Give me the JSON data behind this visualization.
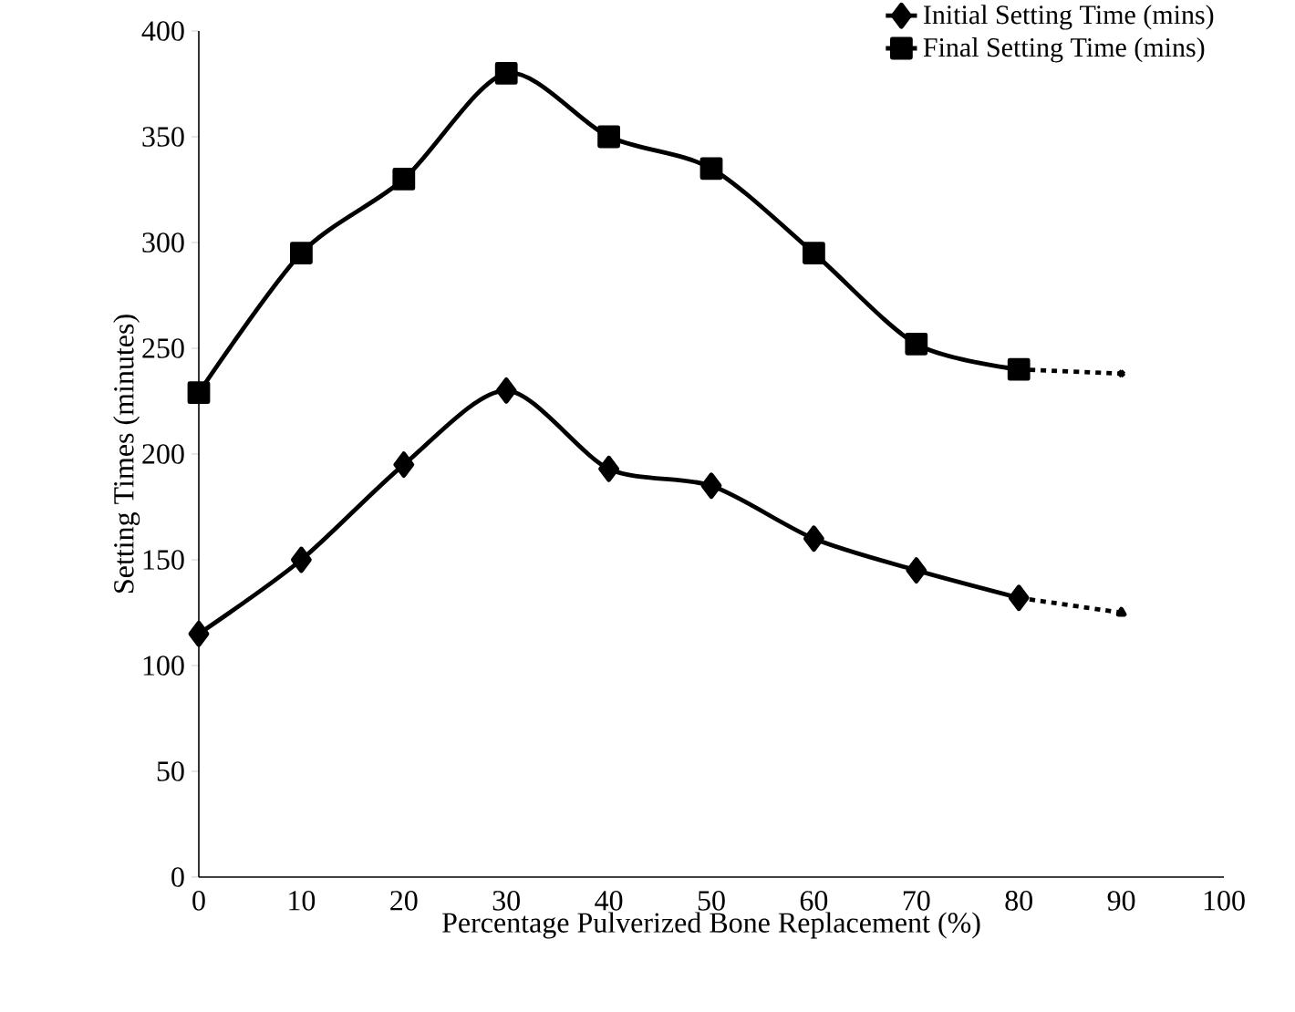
{
  "chart_data": {
    "type": "line",
    "xlabel": "Percentage Pulverized Bone Replacement (%)",
    "ylabel": "Setting Times (minutes)",
    "xlim": [
      0,
      100
    ],
    "xticks": [
      0,
      10,
      20,
      30,
      40,
      50,
      60,
      70,
      80,
      90,
      100
    ],
    "ylim": [
      0,
      400
    ],
    "yticks": [
      0,
      50,
      100,
      150,
      200,
      250,
      300,
      350,
      400
    ],
    "legend": "top right",
    "grid": false,
    "series": [
      {
        "name": "Initial Setting Time (mins)",
        "color": "#000000",
        "marker": "diamond",
        "line_style": "solid",
        "x": [
          0,
          10,
          20,
          30,
          40,
          50,
          60,
          70,
          80
        ],
        "values": [
          115,
          150,
          195,
          230,
          193,
          185,
          160,
          145,
          132
        ]
      },
      {
        "name": "Final Setting Time (mins)",
        "color": "#000000",
        "marker": "square",
        "line_style": "solid",
        "x": [
          0,
          10,
          20,
          30,
          40,
          50,
          60,
          70,
          80
        ],
        "values": [
          229,
          295,
          330,
          380,
          350,
          335,
          295,
          252,
          240
        ]
      },
      {
        "color": "#000000",
        "marker": "triangle",
        "line_style": "dashed",
        "x": [
          80,
          90
        ],
        "values": [
          132,
          125
        ]
      },
      {
        "color": "#000000",
        "marker": "cross",
        "line_style": "dashed",
        "x": [
          80,
          90
        ],
        "values": [
          240,
          238
        ]
      }
    ]
  }
}
